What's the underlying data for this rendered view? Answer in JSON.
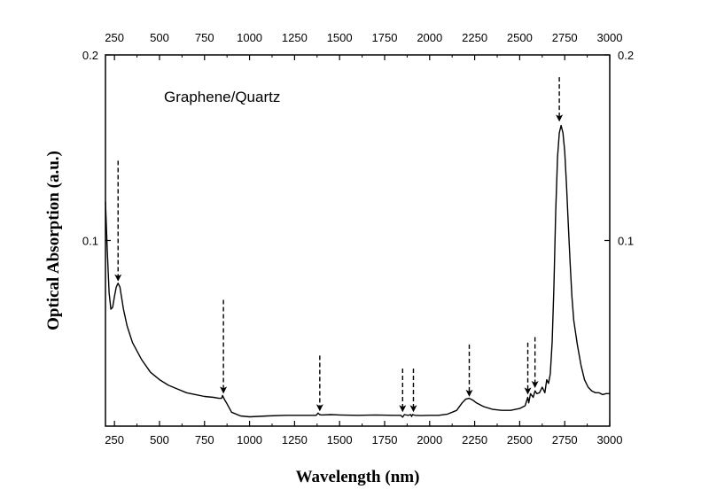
{
  "chart_data": {
    "type": "line",
    "title": "",
    "xlabel": "Wavelength (nm)",
    "ylabel": "Optical Absorption (a.u.)",
    "xlim": [
      200,
      3000
    ],
    "ylim": [
      0,
      0.2
    ],
    "xticks": [
      250,
      500,
      750,
      1000,
      1250,
      1500,
      1750,
      2000,
      2250,
      2500,
      2750,
      3000
    ],
    "xtick_labels": [
      "250",
      "500",
      "750",
      "1000",
      "1250",
      "1500",
      "1750",
      "2000",
      "2250",
      "2500",
      "2750",
      "3000"
    ],
    "yticks": [
      0.1,
      0.2
    ],
    "ytick_labels": [
      "0.1",
      "0.2"
    ],
    "grid": false,
    "mirror_axes": true,
    "annotation_text": "Graphene/Quartz",
    "line_color": "#000000",
    "series": [
      {
        "x": [
          200,
          210,
          220,
          230,
          240,
          250,
          260,
          270,
          280,
          290,
          300,
          320,
          350,
          400,
          450,
          500,
          550,
          600,
          650,
          700,
          750,
          800,
          830,
          845,
          850,
          860,
          875,
          900,
          950,
          1000,
          1100,
          1200,
          1300,
          1370,
          1380,
          1390,
          1400,
          1450,
          1500,
          1600,
          1700,
          1800,
          1840,
          1850,
          1860,
          1880,
          1895,
          1900,
          1905,
          1920,
          1950,
          2000,
          2050,
          2100,
          2150,
          2180,
          2200,
          2220,
          2240,
          2260,
          2300,
          2350,
          2400,
          2450,
          2500,
          2530,
          2545,
          2550,
          2560,
          2575,
          2585,
          2595,
          2610,
          2625,
          2640,
          2650,
          2660,
          2670,
          2680,
          2690,
          2700,
          2710,
          2720,
          2730,
          2740,
          2750,
          2760,
          2770,
          2780,
          2790,
          2800,
          2820,
          2840,
          2860,
          2880,
          2900,
          2920,
          2940,
          2960,
          2980,
          3000
        ],
        "y": [
          0.121,
          0.095,
          0.072,
          0.063,
          0.064,
          0.07,
          0.075,
          0.077,
          0.075,
          0.069,
          0.063,
          0.054,
          0.045,
          0.036,
          0.029,
          0.025,
          0.022,
          0.02,
          0.018,
          0.017,
          0.016,
          0.0155,
          0.015,
          0.015,
          0.0165,
          0.0145,
          0.012,
          0.0075,
          0.0055,
          0.005,
          0.0055,
          0.0058,
          0.0058,
          0.0058,
          0.007,
          0.0062,
          0.006,
          0.0062,
          0.006,
          0.0058,
          0.006,
          0.0058,
          0.0058,
          0.0048,
          0.0062,
          0.0058,
          0.0062,
          0.0052,
          0.0062,
          0.0058,
          0.0057,
          0.0058,
          0.0058,
          0.0065,
          0.0085,
          0.0125,
          0.0145,
          0.015,
          0.014,
          0.0125,
          0.0105,
          0.009,
          0.0085,
          0.0085,
          0.0095,
          0.011,
          0.0155,
          0.0125,
          0.0175,
          0.0155,
          0.019,
          0.0175,
          0.018,
          0.021,
          0.018,
          0.025,
          0.023,
          0.028,
          0.045,
          0.075,
          0.115,
          0.145,
          0.158,
          0.162,
          0.158,
          0.148,
          0.13,
          0.108,
          0.088,
          0.07,
          0.057,
          0.044,
          0.033,
          0.025,
          0.021,
          0.019,
          0.018,
          0.018,
          0.017,
          0.0175,
          0.0175
        ]
      }
    ],
    "arrow_markers": [
      {
        "x": 270,
        "tail_y": 0.143,
        "head_y": 0.078
      },
      {
        "x": 855,
        "tail_y": 0.068,
        "head_y": 0.0175
      },
      {
        "x": 1390,
        "tail_y": 0.038,
        "head_y": 0.008
      },
      {
        "x": 1850,
        "tail_y": 0.031,
        "head_y": 0.0075
      },
      {
        "x": 1910,
        "tail_y": 0.031,
        "head_y": 0.0075
      },
      {
        "x": 2220,
        "tail_y": 0.044,
        "head_y": 0.0158
      },
      {
        "x": 2545,
        "tail_y": 0.045,
        "head_y": 0.017
      },
      {
        "x": 2585,
        "tail_y": 0.048,
        "head_y": 0.0205
      },
      {
        "x": 2720,
        "tail_y": 0.188,
        "head_y": 0.164
      }
    ]
  }
}
